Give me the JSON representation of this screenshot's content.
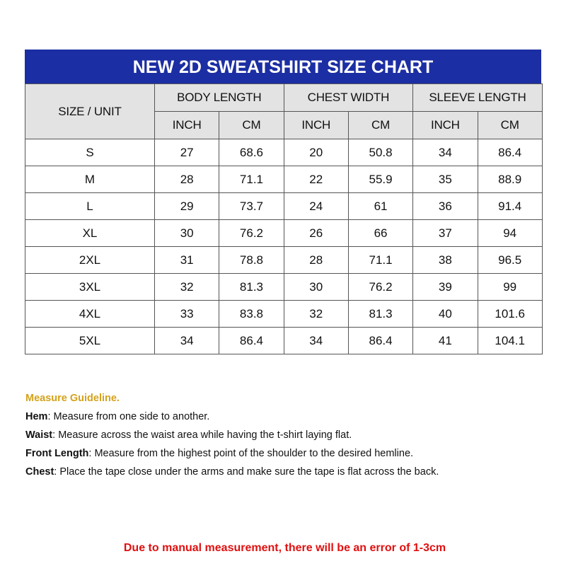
{
  "title": "NEW 2D SWEATSHIRT SIZE CHART",
  "colors": {
    "title_bg": "#1c2ea3",
    "header_bg": "#e3e3e3",
    "guideline": "#d4a21c",
    "warning": "#e01010"
  },
  "table": {
    "size_header": "SIZE / UNIT",
    "groups": [
      "BODY LENGTH",
      "CHEST WIDTH",
      "SLEEVE LENGTH"
    ],
    "units": [
      "INCH",
      "CM",
      "INCH",
      "CM",
      "INCH",
      "CM"
    ],
    "rows": [
      [
        "S",
        "27",
        "68.6",
        "20",
        "50.8",
        "34",
        "86.4"
      ],
      [
        "M",
        "28",
        "71.1",
        "22",
        "55.9",
        "35",
        "88.9"
      ],
      [
        "L",
        "29",
        "73.7",
        "24",
        "61",
        "36",
        "91.4"
      ],
      [
        "XL",
        "30",
        "76.2",
        "26",
        "66",
        "37",
        "94"
      ],
      [
        "2XL",
        "31",
        "78.8",
        "28",
        "71.1",
        "38",
        "96.5"
      ],
      [
        "3XL",
        "32",
        "81.3",
        "30",
        "76.2",
        "39",
        "99"
      ],
      [
        "4XL",
        "33",
        "83.8",
        "32",
        "81.3",
        "40",
        "101.6"
      ],
      [
        "5XL",
        "34",
        "86.4",
        "34",
        "86.4",
        "41",
        "104.1"
      ]
    ]
  },
  "guideline": {
    "heading": "Measure Guideline.",
    "items": [
      {
        "term": "Hem",
        "text": ": Measure from one side to another."
      },
      {
        "term": "Waist",
        "text": ": Measure across the waist area while having the t-shirt laying flat."
      },
      {
        "term": "Front Length",
        "text": ": Measure from the highest point of the shoulder to the desired hemline."
      },
      {
        "term": "Chest",
        "text": ": Place the tape close under the arms and make sure the tape is flat across the back."
      }
    ]
  },
  "warning": "Due to manual measurement, there will be an error of 1-3cm"
}
